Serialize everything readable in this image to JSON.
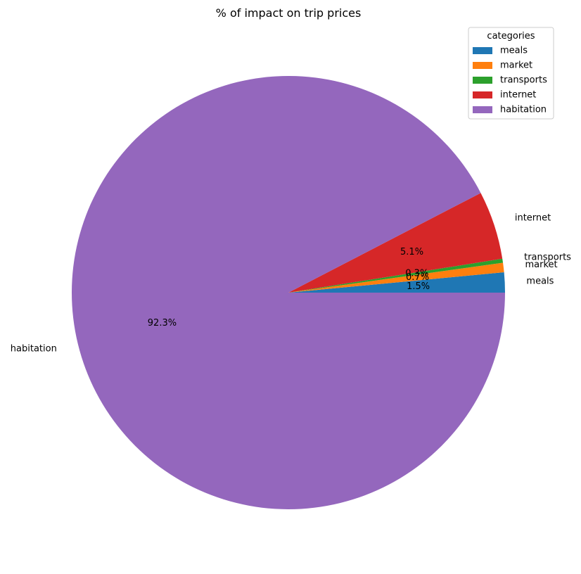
{
  "chart_data": {
    "type": "pie",
    "title": "% of impact on trip prices",
    "legend": {
      "title": "categories",
      "placement": "top-right"
    },
    "start_angle_deg": 0,
    "direction": "counterclockwise",
    "slices": [
      {
        "label": "meals",
        "value": 1.5,
        "pct_label": "1.5%",
        "color": "#1f77b4"
      },
      {
        "label": "market",
        "value": 0.7,
        "pct_label": "0.7%",
        "color": "#ff7f0e"
      },
      {
        "label": "transports",
        "value": 0.3,
        "pct_label": "0.3%",
        "color": "#2ca02c"
      },
      {
        "label": "internet",
        "value": 5.1,
        "pct_label": "5.1%",
        "color": "#d62728"
      },
      {
        "label": "habitation",
        "value": 92.3,
        "pct_label": "92.3%",
        "color": "#9467bd"
      }
    ]
  }
}
